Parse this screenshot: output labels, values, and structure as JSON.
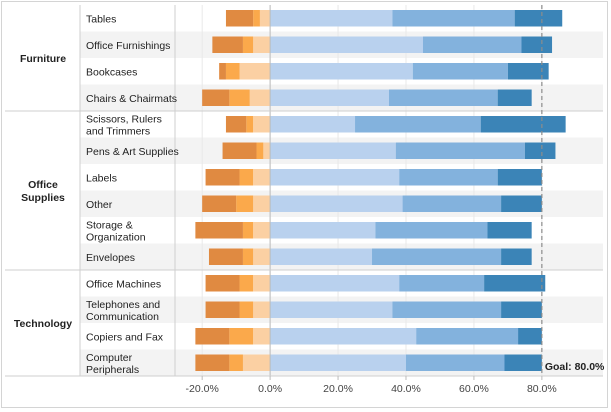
{
  "chart_data": {
    "type": "bar",
    "subtype": "diverging-stacked-bar",
    "categories": [
      "Tables",
      "Office Furnishings",
      "Bookcases",
      "Chairs & Chairmats",
      "Scissors, Rulers and Trimmers",
      "Pens & Art Supplies",
      "Labels",
      "Other",
      "Storage & Organization",
      "Envelopes",
      "Office Machines",
      "Telephones and Communication",
      "Copiers and Fax",
      "Computer Peripherals"
    ],
    "groups": [
      {
        "name": "Furniture",
        "lines": [
          "Furniture"
        ],
        "count": 4
      },
      {
        "name": "Office Supplies",
        "lines": [
          "Office",
          "Supplies"
        ],
        "count": 6
      },
      {
        "name": "Technology",
        "lines": [
          "Technology"
        ],
        "count": 4
      }
    ],
    "category_lines": [
      [
        "Tables"
      ],
      [
        "Office Furnishings"
      ],
      [
        "Bookcases"
      ],
      [
        "Chairs & Chairmats"
      ],
      [
        "Scissors, Rulers",
        "and Trimmers"
      ],
      [
        "Pens & Art Supplies"
      ],
      [
        "Labels"
      ],
      [
        "Other"
      ],
      [
        "Storage &",
        "Organization"
      ],
      [
        "Envelopes"
      ],
      [
        "Office Machines"
      ],
      [
        "Telephones and",
        "Communication"
      ],
      [
        "Copiers and Fax"
      ],
      [
        "Computer",
        "Peripherals"
      ]
    ],
    "negative_series": [
      {
        "values": [
          -3,
          -5,
          -9,
          -6,
          -5,
          -2,
          -5,
          -5,
          -5,
          -5,
          -5,
          -5,
          -5,
          -8
        ],
        "color": "#fbd0a3"
      },
      {
        "values": [
          -2,
          -3,
          -4,
          -6,
          -2,
          -2,
          -4,
          -5,
          -3,
          -3,
          -4,
          -4,
          -7,
          -4
        ],
        "color": "#fba94b"
      },
      {
        "values": [
          -8,
          -9,
          -2,
          -8,
          -6,
          -10,
          -10,
          -10,
          -14,
          -10,
          -10,
          -10,
          -10,
          -10
        ],
        "color": "#e08a41"
      }
    ],
    "positive_series": [
      {
        "values": [
          36,
          45,
          42,
          35,
          25,
          37,
          38,
          39,
          31,
          30,
          38,
          36,
          43,
          40
        ],
        "color": "#b9d1ee"
      },
      {
        "values": [
          36,
          29,
          28,
          32,
          37,
          38,
          29,
          29,
          33,
          38,
          25,
          32,
          30,
          29
        ],
        "color": "#83b2dd"
      },
      {
        "values": [
          14,
          9,
          12,
          10,
          25,
          9,
          13,
          12,
          13,
          9,
          18,
          12,
          7,
          11
        ],
        "color": "#3b84b7"
      }
    ],
    "xlim": [
      -28,
      98
    ],
    "xticks": [
      -20,
      0,
      20,
      40,
      60,
      80
    ],
    "tick_labels": [
      "-20.0%",
      "0.0%",
      "20.0%",
      "40.0%",
      "60.0%",
      "80.0%"
    ],
    "goal": {
      "value": 80,
      "label": "Goal: 80.0%"
    },
    "row_shading": "#f3f3f3",
    "xlabel": "",
    "ylabel": ""
  }
}
